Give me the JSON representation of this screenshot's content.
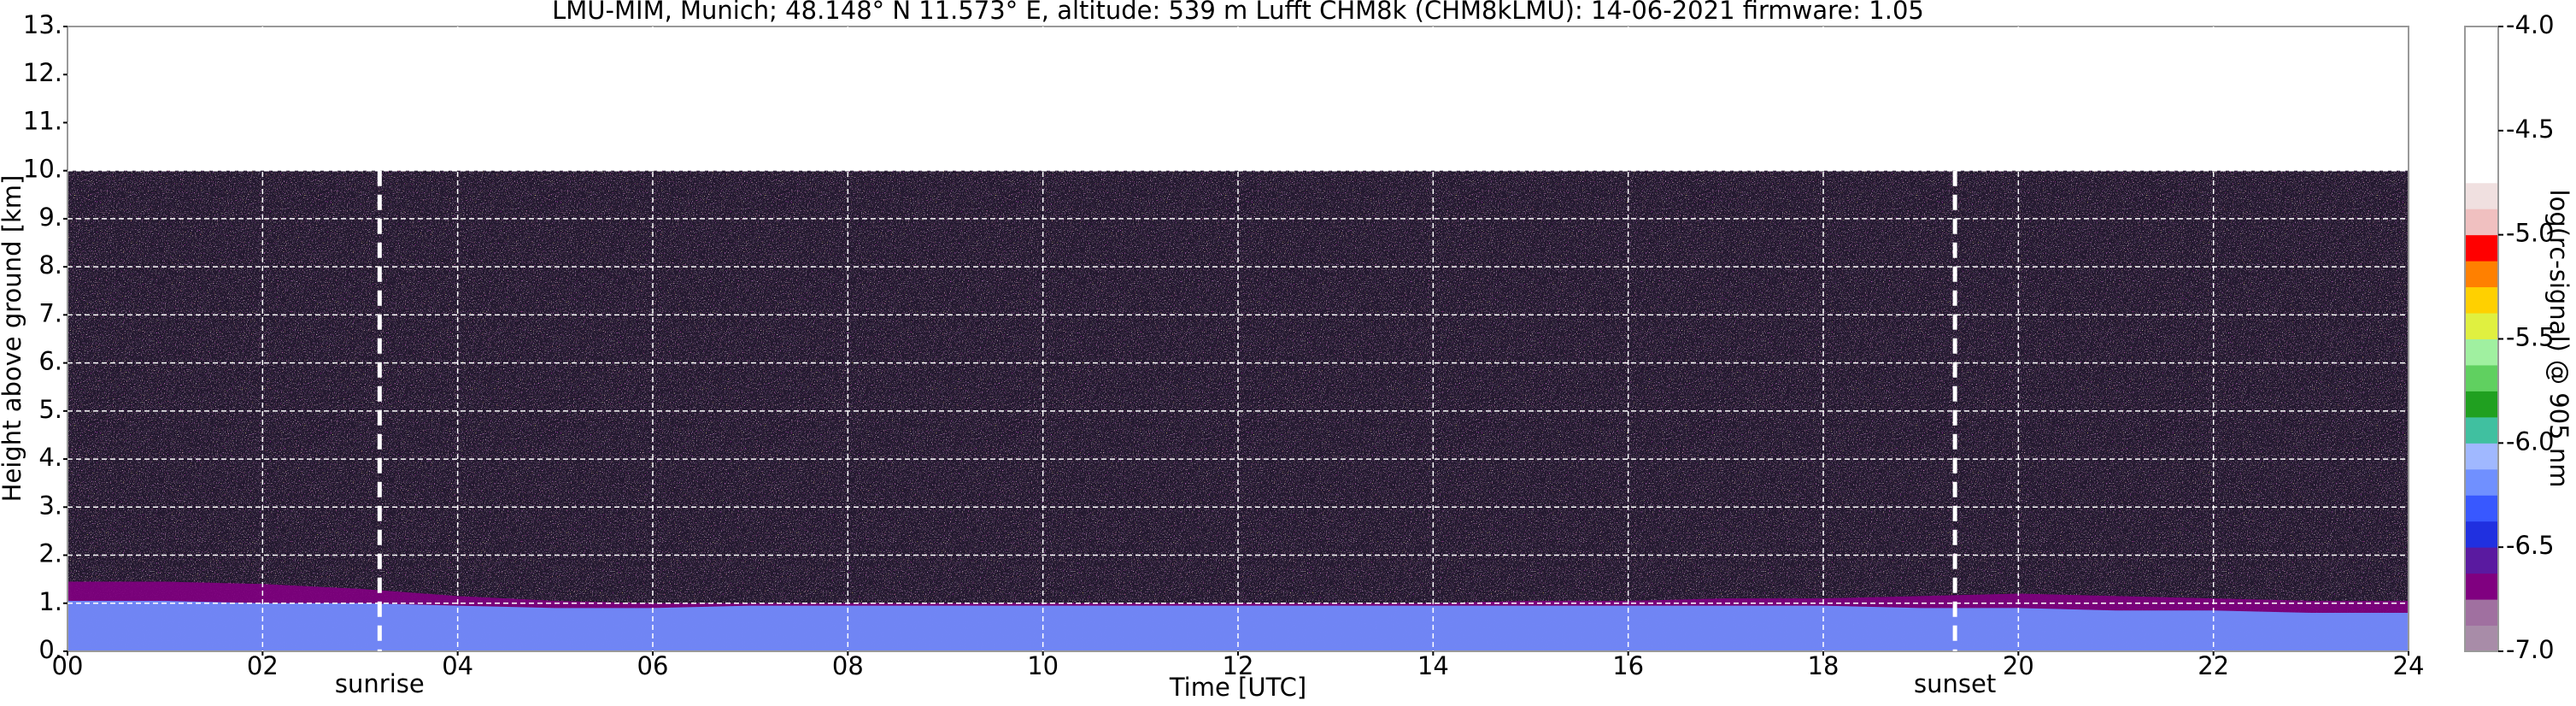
{
  "chart_data": {
    "type": "heatmap",
    "title": "LMU-MIM, Munich; 48.148° N 11.573° E, altitude: 539 m    Lufft CHM8k (CHM8kLMU): 14-06-2021    firmware: 1.05",
    "xlabel": "Time [UTC]",
    "ylabel": "Height above ground [km]",
    "xlim": [
      0,
      24
    ],
    "ylim": [
      0,
      13
    ],
    "xticks": [
      {
        "value": 0,
        "label": "00"
      },
      {
        "value": 2,
        "label": "02"
      },
      {
        "value": 4,
        "label": "04"
      },
      {
        "value": 6,
        "label": "06"
      },
      {
        "value": 8,
        "label": "08"
      },
      {
        "value": 10,
        "label": "10"
      },
      {
        "value": 12,
        "label": "12"
      },
      {
        "value": 14,
        "label": "14"
      },
      {
        "value": 16,
        "label": "16"
      },
      {
        "value": 18,
        "label": "18"
      },
      {
        "value": 20,
        "label": "20"
      },
      {
        "value": 22,
        "label": "22"
      },
      {
        "value": 24,
        "label": "24"
      }
    ],
    "yticks": [
      {
        "value": 0,
        "label": "0."
      },
      {
        "value": 1,
        "label": "1."
      },
      {
        "value": 2,
        "label": "2."
      },
      {
        "value": 3,
        "label": "3."
      },
      {
        "value": 4,
        "label": "4."
      },
      {
        "value": 5,
        "label": "5."
      },
      {
        "value": 6,
        "label": "6."
      },
      {
        "value": 7,
        "label": "7."
      },
      {
        "value": 8,
        "label": "8."
      },
      {
        "value": 9,
        "label": "9."
      },
      {
        "value": 10,
        "label": "10."
      },
      {
        "value": 11,
        "label": "11."
      },
      {
        "value": 12,
        "label": "12."
      },
      {
        "value": 13,
        "label": "13."
      }
    ],
    "grid": true,
    "noise_top": 10,
    "markers": [
      {
        "label": "sunrise",
        "x": 3.2
      },
      {
        "label": "sunset",
        "x": 19.35
      }
    ],
    "x": [
      0,
      1,
      2,
      3,
      4,
      5,
      6,
      7,
      8,
      9,
      10,
      11,
      12,
      13,
      14,
      15,
      16,
      17,
      18,
      19,
      20,
      21,
      22,
      23,
      24
    ],
    "layers": [
      {
        "value": -6.7,
        "top": [
          1.45,
          1.45,
          1.4,
          1.3,
          1.15,
          1.05,
          1.0,
          1.0,
          1.0,
          1.0,
          1.0,
          1.0,
          1.0,
          1.0,
          1.0,
          1.05,
          1.05,
          1.1,
          1.1,
          1.15,
          1.2,
          1.15,
          1.1,
          1.05,
          1.05
        ]
      },
      {
        "value": -6.2,
        "top": [
          1.05,
          1.05,
          1.0,
          1.0,
          0.95,
          0.9,
          0.9,
          0.95,
          0.95,
          0.95,
          0.95,
          0.95,
          0.95,
          0.95,
          0.95,
          0.95,
          0.95,
          0.95,
          0.95,
          0.9,
          0.9,
          0.85,
          0.85,
          0.8,
          0.8
        ]
      }
    ],
    "colorbar": {
      "label": "log(rc-signal) @ 905 nm",
      "clim": [
        -7,
        -4
      ],
      "ticks": [
        {
          "value": -7,
          "label": "-7.0"
        },
        {
          "value": -6.5,
          "label": "-6.5"
        },
        {
          "value": -6,
          "label": "-6.0"
        },
        {
          "value": -5.5,
          "label": "-5.5"
        },
        {
          "value": -5,
          "label": "-5.0"
        },
        {
          "value": -4.5,
          "label": "-4.5"
        },
        {
          "value": -4,
          "label": "-4.0"
        }
      ],
      "bounds": [
        -7,
        -6.875,
        -6.75,
        -6.625,
        -6.5,
        -6.375,
        -6.25,
        -6.125,
        -6,
        -5.875,
        -5.75,
        -5.625,
        -5.5,
        -5.375,
        -5.25,
        -5.125,
        -5,
        -4.875,
        -4.75,
        -4.5,
        -4.25,
        -4
      ],
      "colors": [
        "#a88ca8",
        "#a070a0",
        "#800080",
        "#5a1aa0",
        "#2030e0",
        "#3858ff",
        "#7090ff",
        "#a0b8ff",
        "#40c0a0",
        "#20a020",
        "#60d060",
        "#a0f0a0",
        "#e0f040",
        "#ffd000",
        "#ff8000",
        "#ff0000",
        "#f0c0c0",
        "#f0e0e0",
        "#ffffff",
        "#ffffff",
        "#ffffff"
      ]
    }
  }
}
